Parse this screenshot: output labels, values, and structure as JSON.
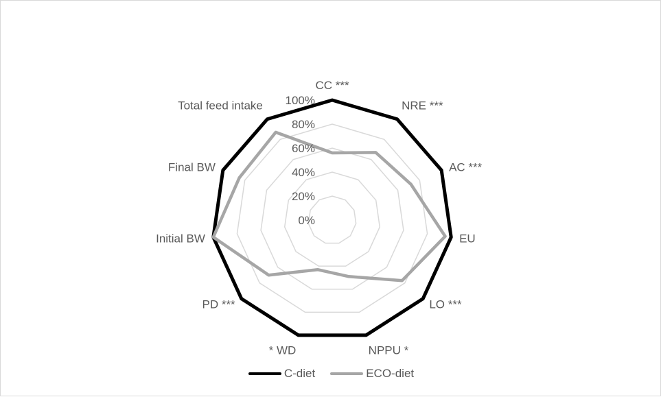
{
  "chart_data": {
    "type": "radar",
    "categories": [
      "CC ***",
      "NRE ***",
      "AC ***",
      "EU",
      "LO ***",
      "NPPU *",
      "* WD",
      "PD ***",
      "Initial BW",
      "Final BW",
      "Total feed intake"
    ],
    "series": [
      {
        "name": "C-diet",
        "values": [
          100,
          100,
          100,
          100,
          100,
          100,
          100,
          100,
          100,
          100,
          100
        ],
        "color": "#000000"
      },
      {
        "name": "ECO-diet",
        "values": [
          56,
          67,
          72,
          95,
          77,
          49,
          43,
          70,
          100,
          85,
          87
        ],
        "color": "#a6a6a6"
      }
    ],
    "radial_ticks": [
      "0%",
      "20%",
      "40%",
      "60%",
      "80%",
      "100%"
    ],
    "rlim": [
      0,
      100
    ],
    "grid": true,
    "legend_position": "bottom",
    "gridline_color": "#d9d9d9"
  }
}
